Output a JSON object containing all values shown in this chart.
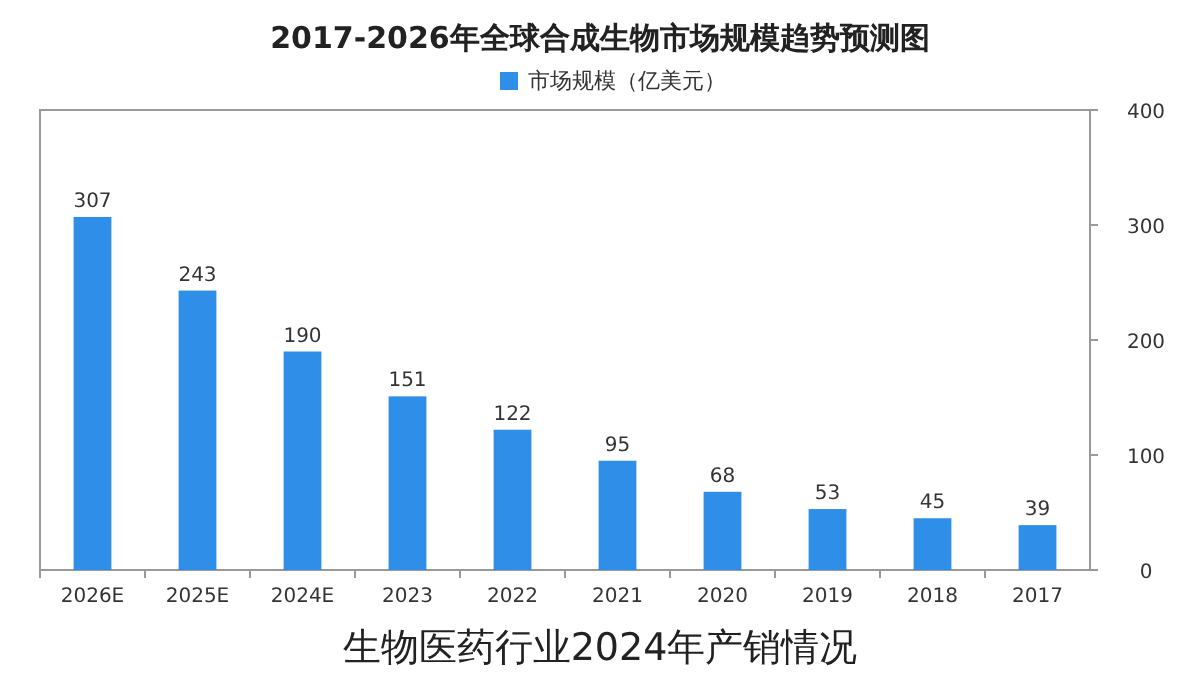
{
  "chart_data": {
    "type": "bar",
    "title": "2017-2026年全球合成生物市场规模趋势预测图",
    "categories": [
      "2026E",
      "2025E",
      "2024E",
      "2023",
      "2022",
      "2021",
      "2020",
      "2019",
      "2018",
      "2017"
    ],
    "series": [
      {
        "name": "市场规模（亿美元）",
        "color": "#2e8ee8",
        "values": [
          307,
          243,
          190,
          151,
          122,
          95,
          68,
          53,
          45,
          39
        ]
      }
    ],
    "ylim": [
      0,
      400
    ],
    "yticks": [
      0,
      100,
      200,
      300,
      400
    ],
    "data_labels": true,
    "legend": "top",
    "annotations": [
      "生物医药行业2024年产销情况"
    ]
  }
}
